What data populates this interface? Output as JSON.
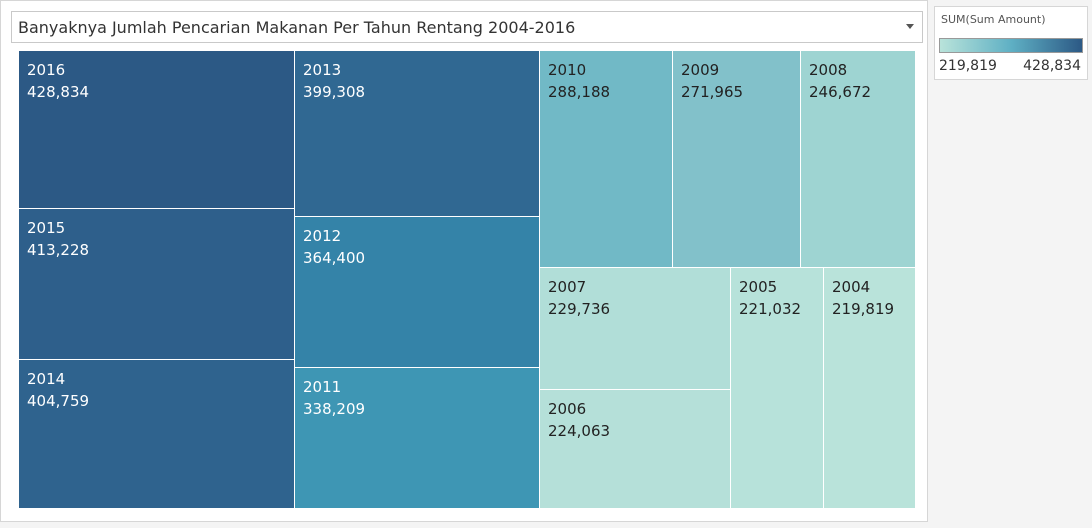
{
  "header": {
    "title": "Banyaknya Jumlah Pencarian Makanan Per Tahun Rentang 2004-2016"
  },
  "legend": {
    "title": "SUM(Sum Amount)",
    "min_label": "219,819",
    "max_label": "428,834",
    "color_low": "#b9e3da",
    "color_high": "#2c5985"
  },
  "chart_data": {
    "type": "treemap",
    "title": "Banyaknya Jumlah Pencarian Makanan Per Tahun Rentang 2004-2016",
    "measure": "SUM(Sum Amount)",
    "color_range": [
      219819,
      428834
    ],
    "items": [
      {
        "label": "2016",
        "value": 428834,
        "display": "428,834",
        "color": "#2c5985"
      },
      {
        "label": "2015",
        "value": 413228,
        "display": "413,228",
        "color": "#2e5f8b"
      },
      {
        "label": "2014",
        "value": 404759,
        "display": "404,759",
        "color": "#2f638e"
      },
      {
        "label": "2013",
        "value": 399308,
        "display": "399,308",
        "color": "#306892"
      },
      {
        "label": "2012",
        "value": 364400,
        "display": "364,400",
        "color": "#3483a8"
      },
      {
        "label": "2011",
        "value": 338209,
        "display": "338,209",
        "color": "#3e96b4"
      },
      {
        "label": "2010",
        "value": 288188,
        "display": "288,188",
        "color": "#71b9c6"
      },
      {
        "label": "2009",
        "value": 271965,
        "display": "271,965",
        "color": "#82c1ca"
      },
      {
        "label": "2008",
        "value": 246672,
        "display": "246,672",
        "color": "#9ed4d2"
      },
      {
        "label": "2007",
        "value": 229736,
        "display": "229,736",
        "color": "#b1ded8"
      },
      {
        "label": "2006",
        "value": 224063,
        "display": "224,063",
        "color": "#b5e0d9"
      },
      {
        "label": "2005",
        "value": 221032,
        "display": "221,032",
        "color": "#b7e2da"
      },
      {
        "label": "2004",
        "value": 219819,
        "display": "219,819",
        "color": "#b9e3da"
      }
    ]
  }
}
